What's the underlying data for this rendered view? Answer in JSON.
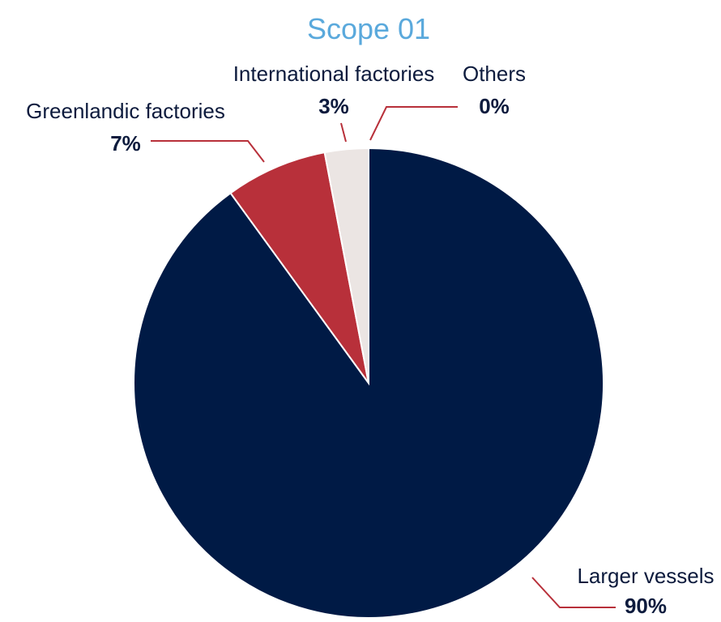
{
  "chart_data": {
    "type": "pie",
    "title": "Scope 01",
    "slices": [
      {
        "label": "Larger vessels",
        "value_label": "90%",
        "value": 90,
        "color": "#001a45"
      },
      {
        "label": "Greenlandic factories",
        "value_label": "7%",
        "value": 7,
        "color": "#b8303a"
      },
      {
        "label": "International factories",
        "value_label": "3%",
        "value": 3,
        "color": "#ebe5e3"
      },
      {
        "label": "Others",
        "value_label": "0%",
        "value": 0,
        "color": "#ebe5e3"
      }
    ],
    "start_angle": "12 o'clock",
    "direction": "clockwise",
    "labels": "outside with leader lines",
    "colors": {
      "title": "#5aa9dc",
      "label_text": "#0d1b3d",
      "leader": "#b8303a"
    }
  }
}
